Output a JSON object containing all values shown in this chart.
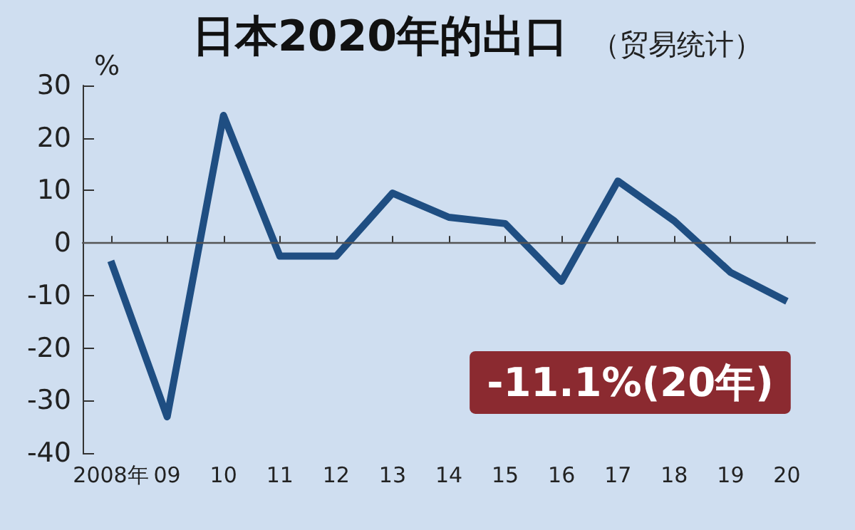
{
  "chart_data": {
    "type": "line",
    "title": "日本2020年的出口",
    "subtitle": "（贸易统计）",
    "ylabel": "%",
    "categories": [
      "2008年",
      "09",
      "10",
      "11",
      "12",
      "13",
      "14",
      "15",
      "16",
      "17",
      "18",
      "19",
      "20"
    ],
    "series": [
      {
        "color": "#1f4e82",
        "values": [
          -3.4,
          -33.1,
          24.3,
          -2.5,
          -2.5,
          9.5,
          4.9,
          3.7,
          -7.3,
          11.8,
          4.2,
          -5.6,
          -11.1
        ]
      }
    ],
    "ylim": [
      -40,
      30
    ],
    "yticks": [
      -40,
      -30,
      -20,
      -10,
      0,
      10,
      20,
      30
    ],
    "grid": false,
    "marker": "none",
    "line_style": "solid",
    "ref_lines": [
      {
        "axis": "y",
        "value": 0,
        "color": "#555555"
      }
    ],
    "annotations": [
      {
        "text": "-11.1%(20年)",
        "x": "20",
        "y": -11.1
      }
    ]
  }
}
